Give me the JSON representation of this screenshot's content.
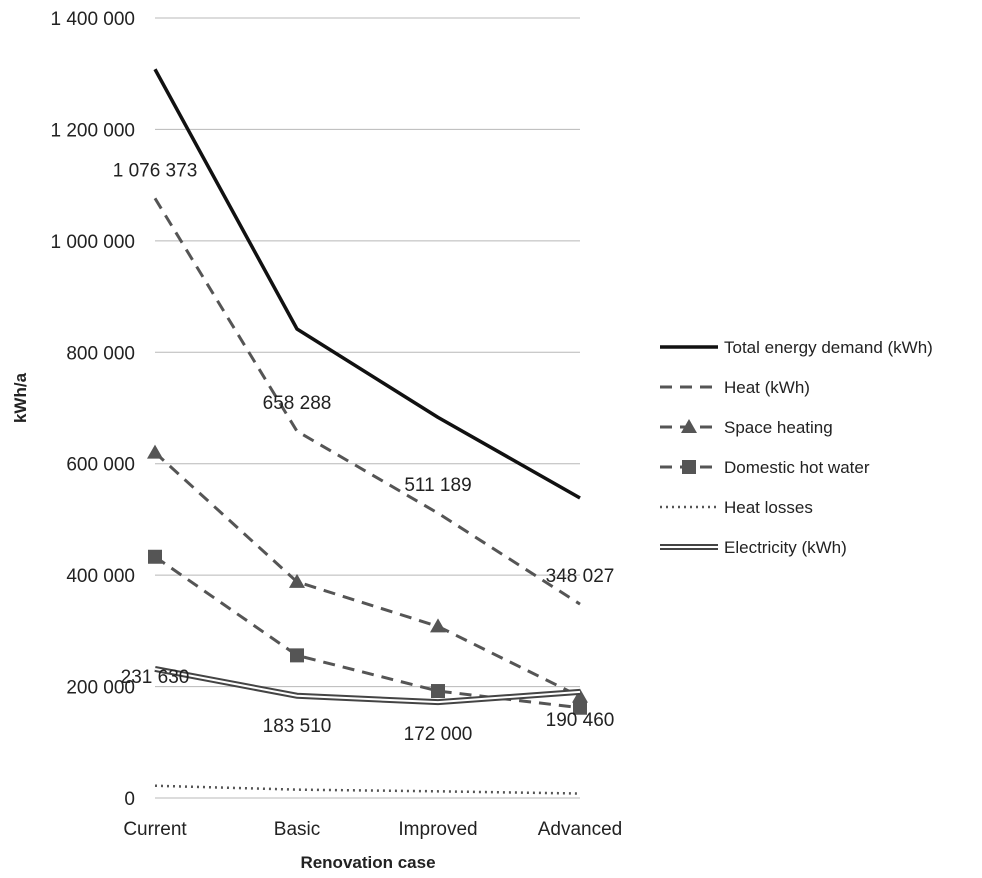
{
  "chart_data": {
    "type": "line",
    "title": "",
    "xlabel": "Renovation case",
    "ylabel": "kWh/a",
    "categories": [
      "Current",
      "Basic",
      "Improved",
      "Advanced"
    ],
    "ylim": [
      0,
      1400000
    ],
    "yticks": [
      0,
      200000,
      400000,
      600000,
      800000,
      1000000,
      1200000,
      1400000
    ],
    "ytick_labels": [
      "0",
      "200 000",
      "400 000",
      "600 000",
      "800 000",
      "1 000 000",
      "1 200 000",
      "1 400 000"
    ],
    "grid": "horizontal",
    "legend_position": "right",
    "series": [
      {
        "name": "Total energy demand (kWh)",
        "values": [
          1308003,
          841798,
          683189,
          538487
        ],
        "style": "solid-thick",
        "color": "#111111"
      },
      {
        "name": "Heat (kWh)",
        "values": [
          1076373,
          658288,
          511189,
          348027
        ],
        "style": "dashed",
        "color": "#555555",
        "labels": [
          "1 076 373",
          "658 288",
          "511 189",
          "348 027"
        ]
      },
      {
        "name": "Space heating",
        "values": [
          620000,
          388000,
          308000,
          182000
        ],
        "style": "dashed-triangle",
        "color": "#555555"
      },
      {
        "name": "Domestic hot water",
        "values": [
          433000,
          256000,
          192000,
          162000
        ],
        "style": "dashed-square",
        "color": "#555555"
      },
      {
        "name": "Heat losses",
        "values": [
          22000,
          15000,
          12000,
          8000
        ],
        "style": "dotted",
        "color": "#555555"
      },
      {
        "name": "Electricity (kWh)",
        "values": [
          231630,
          183510,
          172000,
          190460
        ],
        "style": "double",
        "color": "#444444",
        "labels": [
          "231 630",
          "183 510",
          "172 000",
          "190 460"
        ]
      }
    ]
  }
}
